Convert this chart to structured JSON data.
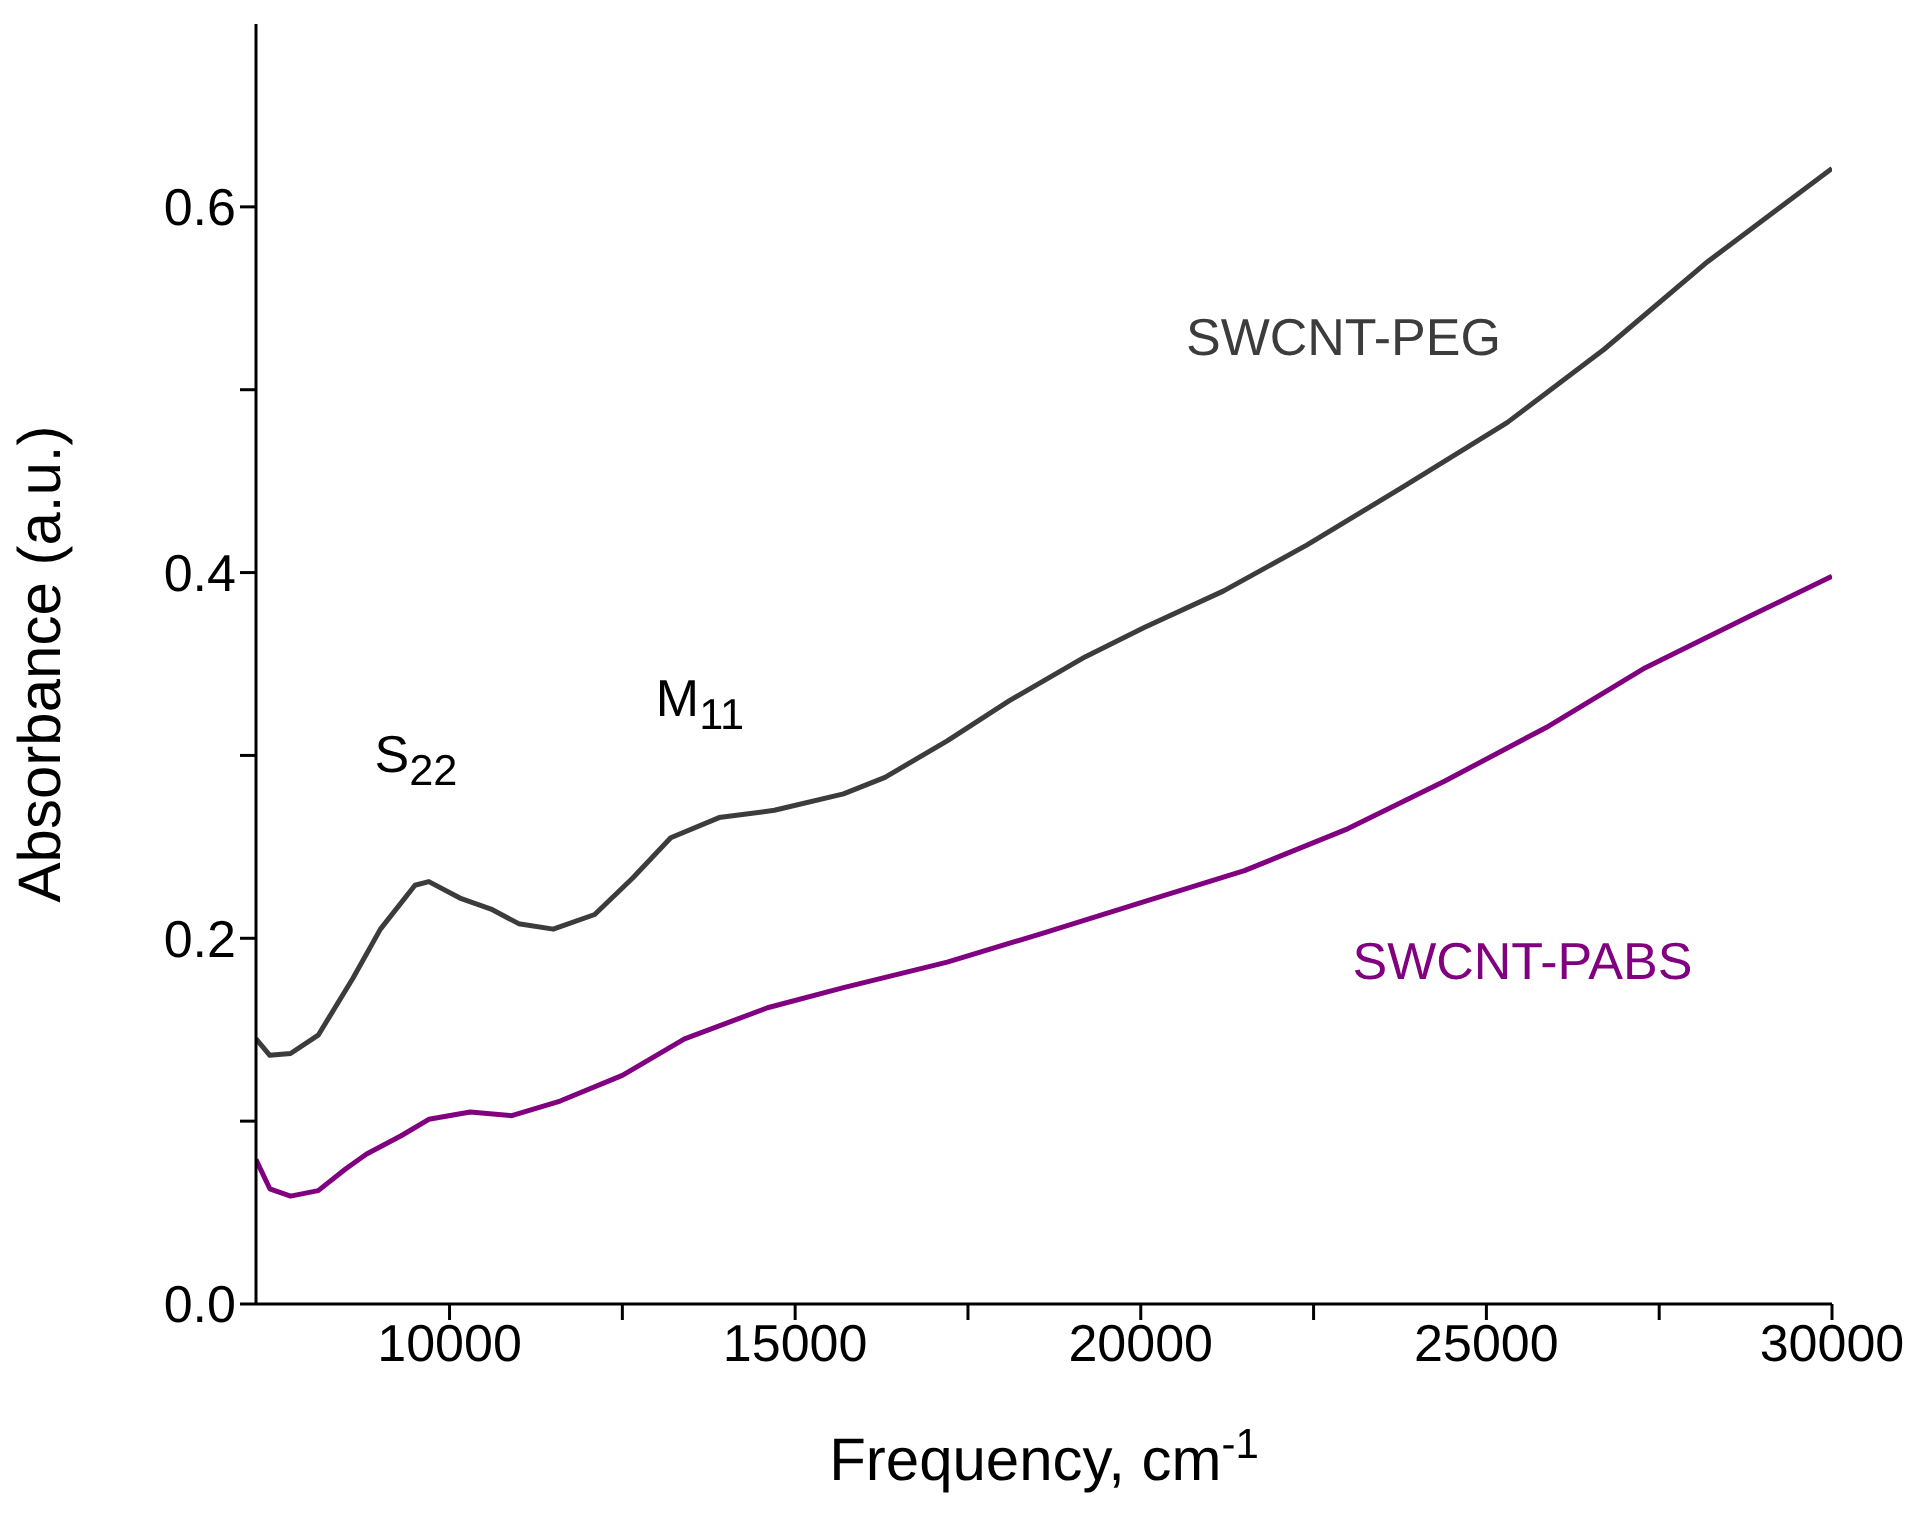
{
  "chart_data": {
    "type": "line",
    "xlabel": "Frequency, cm$^{-1}$",
    "ylabel": "Absorbance (a.u.)",
    "marker": "none",
    "line_style": "solid",
    "xlim": [
      7200,
      30000
    ],
    "ylim": [
      0,
      0.7
    ],
    "xticks": [
      10000,
      {
        "value": 12500,
        "label": null
      },
      15000,
      {
        "value": 17500,
        "label": null
      },
      20000,
      {
        "value": 22500,
        "label": null
      },
      25000,
      {
        "value": 27500,
        "label": null
      },
      30000
    ],
    "yticks": [
      {
        "value": 0,
        "label": "0.0"
      },
      {
        "value": 0.1,
        "label": null
      },
      0.2,
      {
        "value": 0.3,
        "label": null
      },
      0.4,
      {
        "value": 0.5,
        "label": null
      },
      0.6
    ],
    "series": [
      {
        "name": "SWCNT-PEG",
        "color": "#3c3c3c",
        "x": [
          7200,
          7400,
          7700,
          8100,
          8600,
          9000,
          9500,
          9700,
          10150,
          10600,
          11000,
          11500,
          12100,
          12650,
          13200,
          13900,
          14700,
          15700,
          16300,
          17200,
          18100,
          19200,
          20050,
          21200,
          22400,
          23800,
          25300,
          26700,
          28200,
          30000
        ],
        "values": [
          0.145,
          0.136,
          0.137,
          0.147,
          0.178,
          0.205,
          0.229,
          0.231,
          0.222,
          0.216,
          0.208,
          0.205,
          0.213,
          0.233,
          0.255,
          0.266,
          0.27,
          0.279,
          0.288,
          0.308,
          0.33,
          0.354,
          0.37,
          0.39,
          0.415,
          0.447,
          0.482,
          0.522,
          0.57,
          0.621
        ]
      },
      {
        "name": "SWCNT-PABS",
        "color": "#800080",
        "x": [
          7200,
          7400,
          7700,
          8100,
          8500,
          8800,
          9300,
          9700,
          10300,
          10900,
          11600,
          12500,
          13400,
          14600,
          15700,
          17200,
          18600,
          20050,
          21500,
          23000,
          24400,
          25900,
          27300,
          28800,
          30000
        ],
        "values": [
          0.079,
          0.063,
          0.059,
          0.062,
          0.074,
          0.082,
          0.092,
          0.101,
          0.105,
          0.103,
          0.111,
          0.125,
          0.145,
          0.162,
          0.173,
          0.187,
          0.203,
          0.22,
          0.237,
          0.26,
          0.286,
          0.316,
          0.348,
          0.376,
          0.398
        ]
      }
    ],
    "annotations": [
      "S$_{22}$",
      "M$_{11}$"
    ]
  }
}
